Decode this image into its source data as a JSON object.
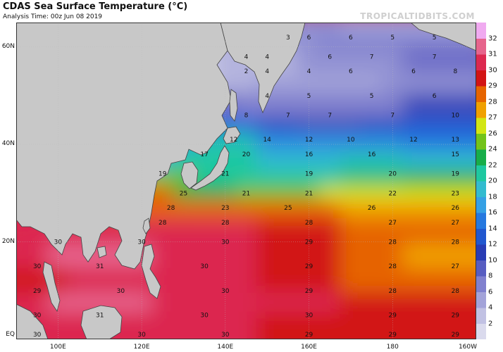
{
  "header": {
    "title": "CDAS Sea Surface Temperature (°C)",
    "analysis_time": "Analysis Time: 00z Jun 08 2019",
    "brand": "TROPICALTIDBITS.COM"
  },
  "map": {
    "lat_labels": [
      {
        "text": "60N",
        "lat": 60
      },
      {
        "text": "40N",
        "lat": 40
      },
      {
        "text": "20N",
        "lat": 20
      },
      {
        "text": "EQ",
        "lat": 0
      }
    ],
    "lon_labels": [
      {
        "text": "100E",
        "lon": 100
      },
      {
        "text": "120E",
        "lon": 120
      },
      {
        "text": "140E",
        "lon": 140
      },
      {
        "text": "160E",
        "lon": 160
      },
      {
        "text": "180",
        "lon": 180
      },
      {
        "text": "160W",
        "lon": 200
      }
    ],
    "extent": {
      "lon_min": 90,
      "lon_max": 200,
      "lat_min": 0,
      "lat_max": 65
    },
    "colors": {
      "land": "#c8c8c8",
      "background": "#ffffff",
      "border": "#333333"
    },
    "sst_samples": [
      {
        "lat": 62,
        "lon": 155,
        "value": 3
      },
      {
        "lat": 62,
        "lon": 160,
        "value": 6
      },
      {
        "lat": 62,
        "lon": 170,
        "value": 6
      },
      {
        "lat": 62,
        "lon": 180,
        "value": 5
      },
      {
        "lat": 62,
        "lon": 190,
        "value": 5
      },
      {
        "lat": 58,
        "lon": 145,
        "value": 4
      },
      {
        "lat": 58,
        "lon": 150,
        "value": 4
      },
      {
        "lat": 58,
        "lon": 165,
        "value": 6
      },
      {
        "lat": 58,
        "lon": 175,
        "value": 7
      },
      {
        "lat": 58,
        "lon": 190,
        "value": 7
      },
      {
        "lat": 55,
        "lon": 145,
        "value": 2
      },
      {
        "lat": 55,
        "lon": 150,
        "value": 4
      },
      {
        "lat": 55,
        "lon": 160,
        "value": 4
      },
      {
        "lat": 55,
        "lon": 170,
        "value": 6
      },
      {
        "lat": 55,
        "lon": 185,
        "value": 6
      },
      {
        "lat": 55,
        "lon": 195,
        "value": 8
      },
      {
        "lat": 50,
        "lon": 150,
        "value": 4
      },
      {
        "lat": 50,
        "lon": 160,
        "value": 5
      },
      {
        "lat": 50,
        "lon": 175,
        "value": 5
      },
      {
        "lat": 50,
        "lon": 190,
        "value": 6
      },
      {
        "lat": 46,
        "lon": 145,
        "value": 8
      },
      {
        "lat": 46,
        "lon": 155,
        "value": 7
      },
      {
        "lat": 46,
        "lon": 165,
        "value": 7
      },
      {
        "lat": 46,
        "lon": 180,
        "value": 7
      },
      {
        "lat": 46,
        "lon": 195,
        "value": 10
      },
      {
        "lat": 41,
        "lon": 142,
        "value": 12
      },
      {
        "lat": 41,
        "lon": 150,
        "value": 14
      },
      {
        "lat": 41,
        "lon": 160,
        "value": 12
      },
      {
        "lat": 41,
        "lon": 170,
        "value": 10
      },
      {
        "lat": 41,
        "lon": 185,
        "value": 12
      },
      {
        "lat": 41,
        "lon": 195,
        "value": 13
      },
      {
        "lat": 38,
        "lon": 135,
        "value": 17
      },
      {
        "lat": 38,
        "lon": 145,
        "value": 20
      },
      {
        "lat": 38,
        "lon": 160,
        "value": 16
      },
      {
        "lat": 38,
        "lon": 175,
        "value": 16
      },
      {
        "lat": 38,
        "lon": 195,
        "value": 15
      },
      {
        "lat": 34,
        "lon": 125,
        "value": 19
      },
      {
        "lat": 34,
        "lon": 140,
        "value": 21
      },
      {
        "lat": 34,
        "lon": 160,
        "value": 19
      },
      {
        "lat": 34,
        "lon": 180,
        "value": 20
      },
      {
        "lat": 34,
        "lon": 195,
        "value": 19
      },
      {
        "lat": 30,
        "lon": 130,
        "value": 25
      },
      {
        "lat": 30,
        "lon": 145,
        "value": 21
      },
      {
        "lat": 30,
        "lon": 160,
        "value": 21
      },
      {
        "lat": 30,
        "lon": 180,
        "value": 22
      },
      {
        "lat": 30,
        "lon": 195,
        "value": 23
      },
      {
        "lat": 27,
        "lon": 127,
        "value": 28
      },
      {
        "lat": 27,
        "lon": 140,
        "value": 23
      },
      {
        "lat": 27,
        "lon": 155,
        "value": 25
      },
      {
        "lat": 27,
        "lon": 175,
        "value": 26
      },
      {
        "lat": 27,
        "lon": 195,
        "value": 26
      },
      {
        "lat": 24,
        "lon": 125,
        "value": 28
      },
      {
        "lat": 24,
        "lon": 140,
        "value": 28
      },
      {
        "lat": 24,
        "lon": 160,
        "value": 28
      },
      {
        "lat": 24,
        "lon": 180,
        "value": 27
      },
      {
        "lat": 24,
        "lon": 195,
        "value": 27
      },
      {
        "lat": 20,
        "lon": 100,
        "value": 30
      },
      {
        "lat": 20,
        "lon": 120,
        "value": 30
      },
      {
        "lat": 20,
        "lon": 140,
        "value": 30
      },
      {
        "lat": 20,
        "lon": 160,
        "value": 29
      },
      {
        "lat": 20,
        "lon": 180,
        "value": 28
      },
      {
        "lat": 20,
        "lon": 195,
        "value": 28
      },
      {
        "lat": 15,
        "lon": 95,
        "value": 30
      },
      {
        "lat": 15,
        "lon": 110,
        "value": 31
      },
      {
        "lat": 15,
        "lon": 135,
        "value": 30
      },
      {
        "lat": 15,
        "lon": 160,
        "value": 29
      },
      {
        "lat": 15,
        "lon": 180,
        "value": 28
      },
      {
        "lat": 15,
        "lon": 195,
        "value": 27
      },
      {
        "lat": 10,
        "lon": 95,
        "value": 29
      },
      {
        "lat": 10,
        "lon": 115,
        "value": 30
      },
      {
        "lat": 10,
        "lon": 140,
        "value": 30
      },
      {
        "lat": 10,
        "lon": 160,
        "value": 29
      },
      {
        "lat": 10,
        "lon": 180,
        "value": 28
      },
      {
        "lat": 10,
        "lon": 195,
        "value": 28
      },
      {
        "lat": 5,
        "lon": 95,
        "value": 30
      },
      {
        "lat": 5,
        "lon": 110,
        "value": 31
      },
      {
        "lat": 5,
        "lon": 135,
        "value": 30
      },
      {
        "lat": 5,
        "lon": 160,
        "value": 30
      },
      {
        "lat": 5,
        "lon": 180,
        "value": 29
      },
      {
        "lat": 5,
        "lon": 195,
        "value": 29
      },
      {
        "lat": 1,
        "lon": 95,
        "value": 30
      },
      {
        "lat": 1,
        "lon": 120,
        "value": 30
      },
      {
        "lat": 1,
        "lon": 140,
        "value": 30
      },
      {
        "lat": 1,
        "lon": 160,
        "value": 29
      },
      {
        "lat": 1,
        "lon": 180,
        "value": 29
      },
      {
        "lat": 1,
        "lon": 195,
        "value": 29
      }
    ]
  },
  "colorbar": {
    "labels": [
      "2",
      "4",
      "6",
      "8",
      "10",
      "12",
      "14",
      "16",
      "18",
      "20",
      "22",
      "24",
      "26",
      "27",
      "28",
      "29",
      "30",
      "31",
      "32"
    ],
    "stops": [
      {
        "value": 0,
        "color": "#e6e6f2"
      },
      {
        "value": 4,
        "color": "#b4b4de"
      },
      {
        "value": 8,
        "color": "#6e6ec8"
      },
      {
        "value": 11,
        "color": "#283cb4"
      },
      {
        "value": 14,
        "color": "#1e64dc"
      },
      {
        "value": 18,
        "color": "#3cb4e6"
      },
      {
        "value": 21,
        "color": "#1ec8a0"
      },
      {
        "value": 24,
        "color": "#14a01e"
      },
      {
        "value": 26,
        "color": "#d2e614"
      },
      {
        "value": 27,
        "color": "#f0a000"
      },
      {
        "value": 28,
        "color": "#e66400"
      },
      {
        "value": 29,
        "color": "#d21414"
      },
      {
        "value": 30,
        "color": "#dc2850"
      },
      {
        "value": 31,
        "color": "#e6648c"
      },
      {
        "value": 32,
        "color": "#f0aaf0"
      }
    ]
  }
}
